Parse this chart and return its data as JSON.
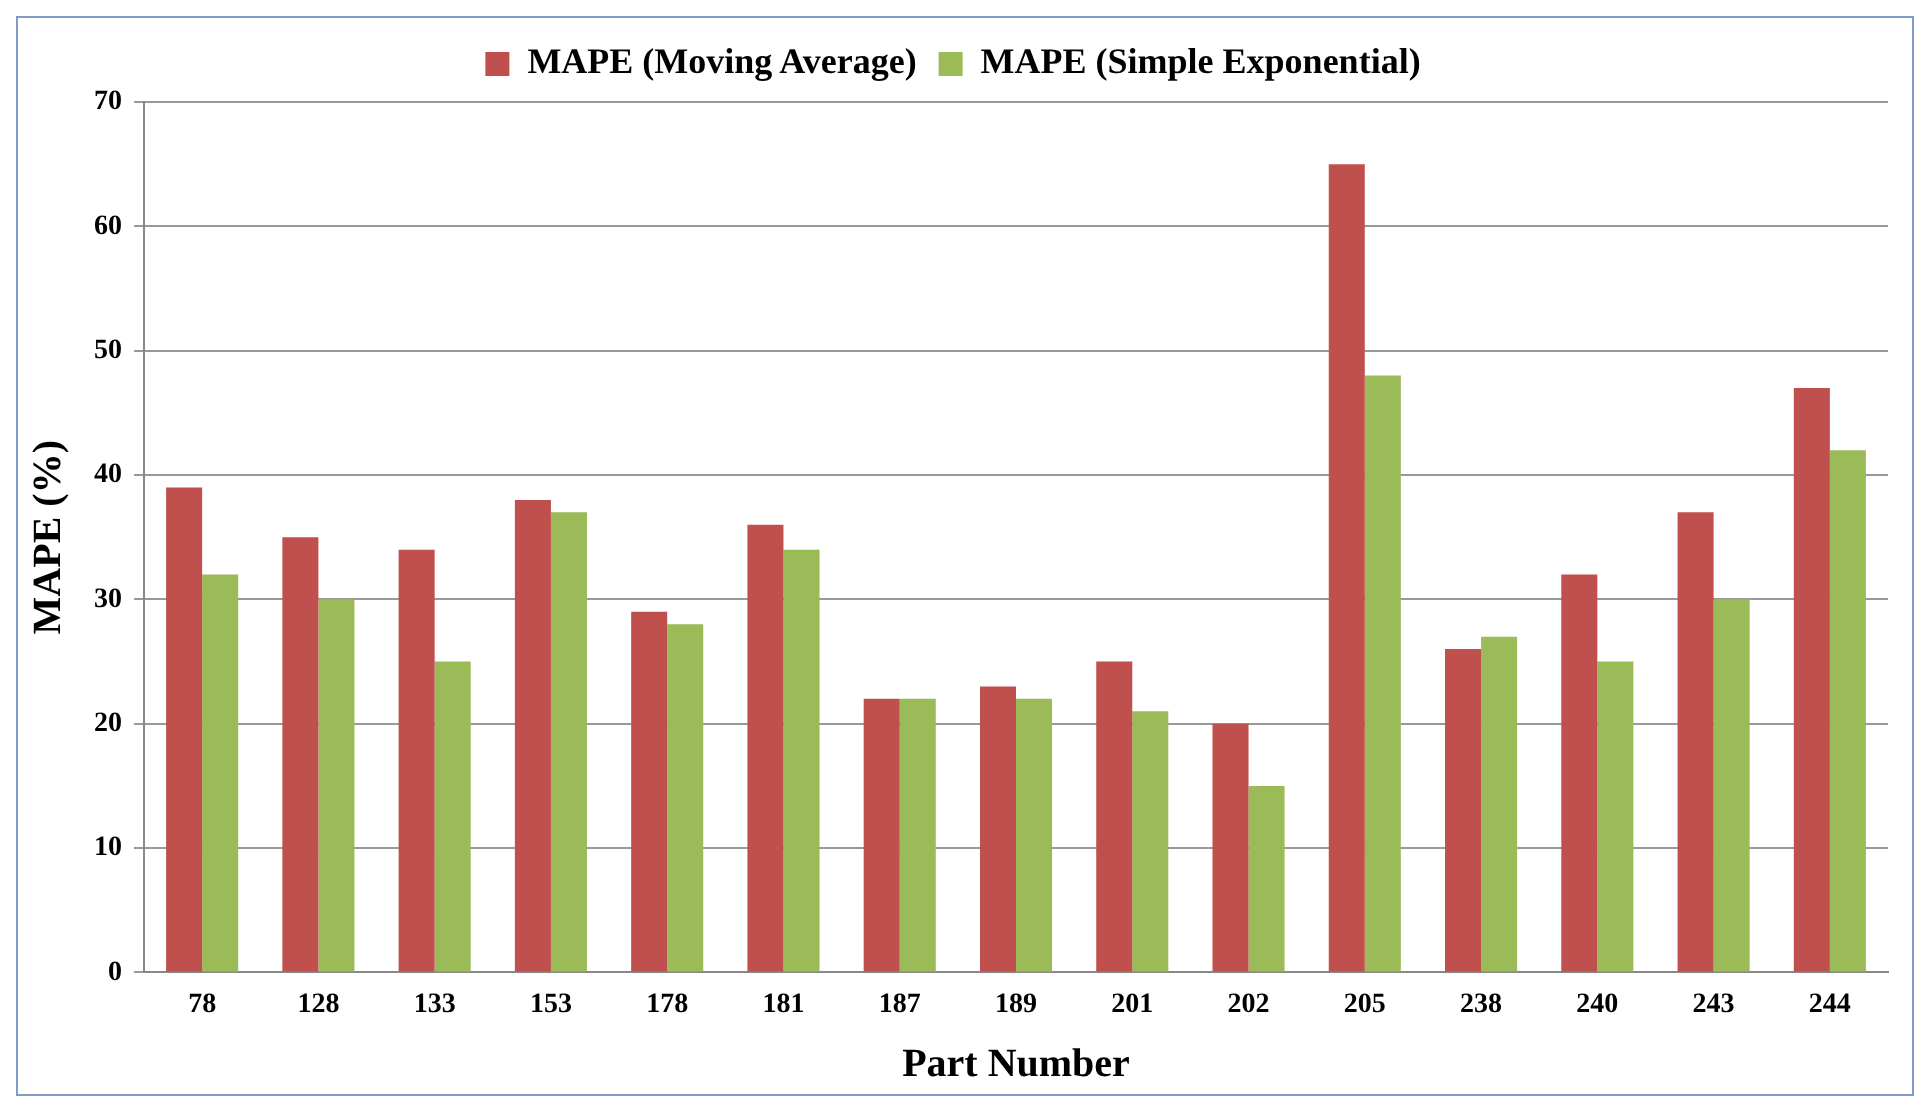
{
  "chart_data": {
    "type": "bar",
    "xlabel": "Part Number",
    "ylabel": "MAPE (%)",
    "categories": [
      "78",
      "128",
      "133",
      "153",
      "178",
      "181",
      "187",
      "189",
      "201",
      "202",
      "205",
      "238",
      "240",
      "243",
      "244"
    ],
    "series": [
      {
        "name": "MAPE (Moving Average)",
        "color": "#c0504d",
        "values": [
          39,
          35,
          34,
          38,
          29,
          36,
          22,
          23,
          25,
          20,
          65,
          26,
          32,
          37,
          47
        ]
      },
      {
        "name": "MAPE (Simple Exponential)",
        "color": "#9bbb59",
        "values": [
          32,
          30,
          25,
          37,
          28,
          34,
          22,
          22,
          21,
          15,
          48,
          27,
          25,
          30,
          42
        ]
      }
    ],
    "ylim": [
      0,
      70
    ],
    "yticks": [
      0,
      10,
      20,
      30,
      40,
      50,
      60,
      70
    ],
    "grid": "y",
    "legend": "top"
  }
}
